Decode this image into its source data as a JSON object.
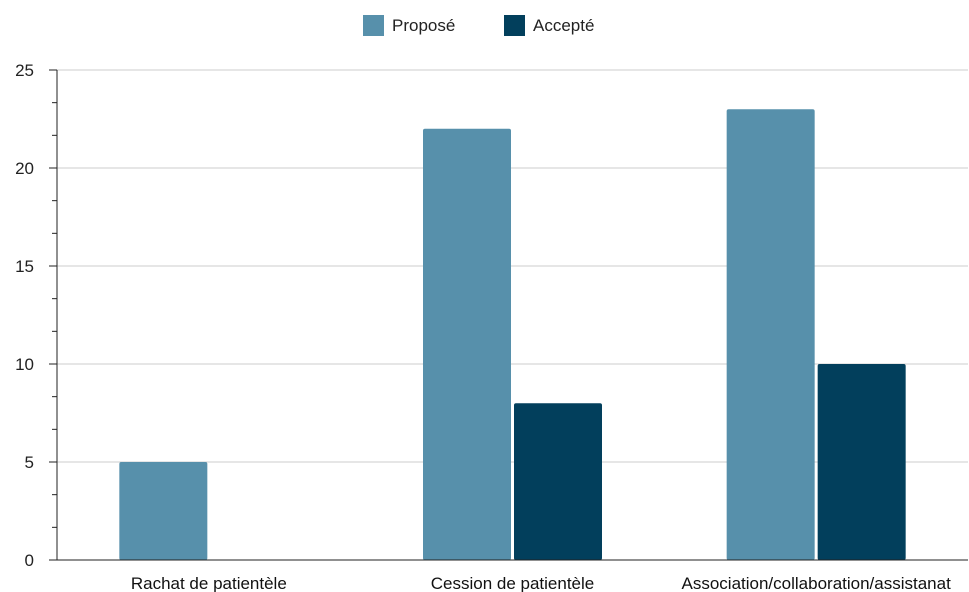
{
  "chart_data": {
    "type": "bar",
    "categories": [
      "Rachat de patientèle",
      "Cession de patientèle",
      "Association/collaboration/assistanat"
    ],
    "series": [
      {
        "name": "Proposé",
        "values": [
          5,
          22,
          23
        ],
        "color": "#5790ab"
      },
      {
        "name": "Accepté",
        "values": [
          0,
          8,
          10
        ],
        "color": "#023f5c"
      }
    ],
    "ylim": [
      0,
      25
    ],
    "yticks": [
      0,
      5,
      10,
      15,
      20,
      25
    ],
    "y_minor_step": 1.6667,
    "title": "",
    "xlabel": "",
    "ylabel": "",
    "legend_position": "top-center",
    "grid": true,
    "grid_color": "#cccccc",
    "axis_color": "#222222"
  }
}
